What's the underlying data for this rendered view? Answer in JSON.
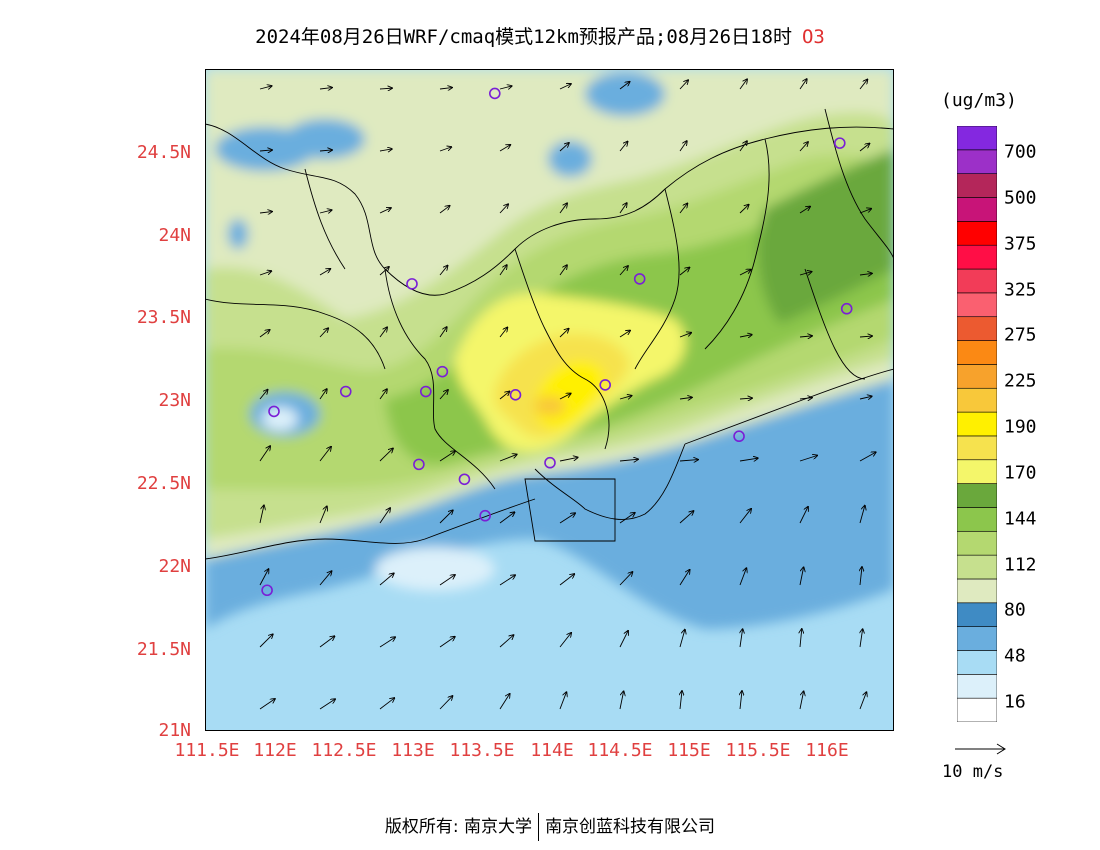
{
  "title": {
    "main": "2024年08月26日WRF/cmaq模式12km预报产品;08月26日18时",
    "species": "O3"
  },
  "axes": {
    "lat_labels": [
      "24.5N",
      "24N",
      "23.5N",
      "23N",
      "22.5N",
      "22N",
      "21.5N",
      "21N"
    ],
    "lon_labels": [
      "111.5E",
      "112E",
      "112.5E",
      "113E",
      "113.5E",
      "114E",
      "114.5E",
      "115E",
      "115.5E",
      "116E"
    ]
  },
  "legend": {
    "unit": "(ug/m3)",
    "labels": [
      "700",
      "500",
      "375",
      "325",
      "275",
      "225",
      "190",
      "170",
      "144",
      "112",
      "80",
      "48",
      "16"
    ],
    "colors": [
      "#ffffff",
      "#dcf0fa",
      "#a8dcf4",
      "#6aaede",
      "#3f8bc4",
      "#dfeac0",
      "#c6e08e",
      "#b4d870",
      "#8cc64c",
      "#6aa83c",
      "#f4f66a",
      "#f6e24e",
      "#fff000",
      "#f8c83a",
      "#f7a22c",
      "#fb8914",
      "#ec5a30",
      "#fa6070",
      "#f23c58",
      "#ff0e46",
      "#ff0000",
      "#c81478",
      "#b4265a",
      "#9c30c8",
      "#8428e0"
    ]
  },
  "wind_reference": {
    "label": "10 m/s"
  },
  "stations": [
    {
      "lon": 113.6,
      "lat": 24.85
    },
    {
      "lon": 116.1,
      "lat": 24.55
    },
    {
      "lon": 113.0,
      "lat": 23.7
    },
    {
      "lon": 114.65,
      "lat": 23.73
    },
    {
      "lon": 116.15,
      "lat": 23.55
    },
    {
      "lon": 113.22,
      "lat": 23.17
    },
    {
      "lon": 112.52,
      "lat": 23.05
    },
    {
      "lon": 113.1,
      "lat": 23.05
    },
    {
      "lon": 113.75,
      "lat": 23.03
    },
    {
      "lon": 114.4,
      "lat": 23.09
    },
    {
      "lon": 112.0,
      "lat": 22.93
    },
    {
      "lon": 115.37,
      "lat": 22.78
    },
    {
      "lon": 113.05,
      "lat": 22.61
    },
    {
      "lon": 114.0,
      "lat": 22.62
    },
    {
      "lon": 113.38,
      "lat": 22.52
    },
    {
      "lon": 113.53,
      "lat": 22.3
    },
    {
      "lon": 111.95,
      "lat": 21.85
    }
  ],
  "copyright": {
    "holder": "版权所有: 南京大学",
    "partner": "南京创蓝科技有限公司"
  }
}
